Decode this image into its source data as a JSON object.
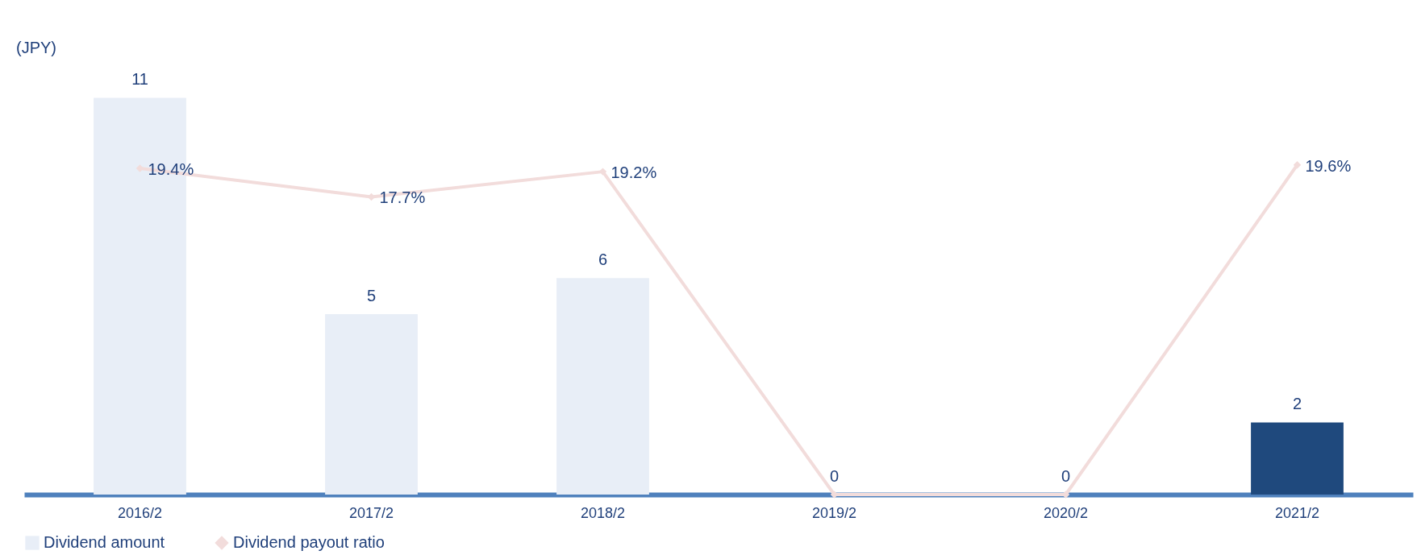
{
  "chart_data": {
    "type": "bar",
    "ylabel": "(JPY)",
    "categories": [
      "2016/2",
      "2017/2",
      "2018/2",
      "2019/2",
      "2020/2",
      "2021/2"
    ],
    "series": [
      {
        "name": "Dividend amount",
        "values": [
          11,
          5,
          6,
          0,
          0,
          2
        ],
        "colors": [
          "#e8eef7",
          "#e8eef7",
          "#e8eef7",
          "#e8eef7",
          "#e8eef7",
          "#1f497d"
        ],
        "data_labels": true
      },
      {
        "name": "Dividend payout ratio",
        "type": "line",
        "axis": "y2",
        "values": [
          19.4,
          17.7,
          19.2,
          0,
          0,
          19.6
        ],
        "value_labels": [
          "19.4%",
          "17.7%",
          "19.2%",
          null,
          null,
          "19.6%"
        ],
        "color": "#f2dcdb",
        "marker": "diamond"
      }
    ],
    "legend": "bottom",
    "grid": false
  }
}
